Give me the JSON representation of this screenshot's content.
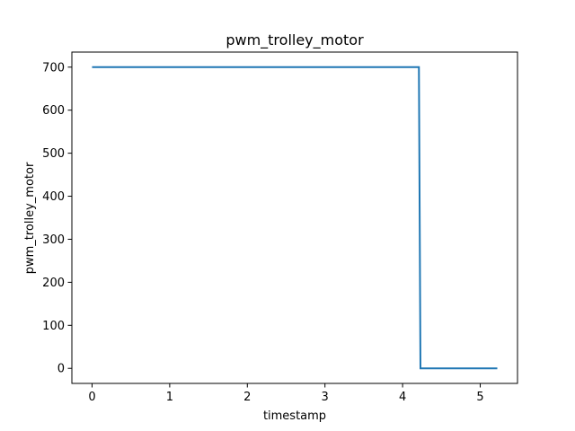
{
  "chart_data": {
    "type": "line",
    "title": "pwm_trolley_motor",
    "xlabel": "timestamp",
    "ylabel": "pwm_trolley_motor",
    "xlim": [
      -0.26,
      5.48
    ],
    "ylim": [
      -35,
      735
    ],
    "xticks": [
      0,
      1,
      2,
      3,
      4,
      5
    ],
    "yticks": [
      0,
      100,
      200,
      300,
      400,
      500,
      600,
      700
    ],
    "grid": false,
    "legend": "none",
    "series": [
      {
        "color": "#1f77b4",
        "x": [
          0,
          4.21,
          4.21,
          4.23,
          5.22
        ],
        "y": [
          700,
          700,
          700,
          0,
          0
        ]
      }
    ]
  }
}
